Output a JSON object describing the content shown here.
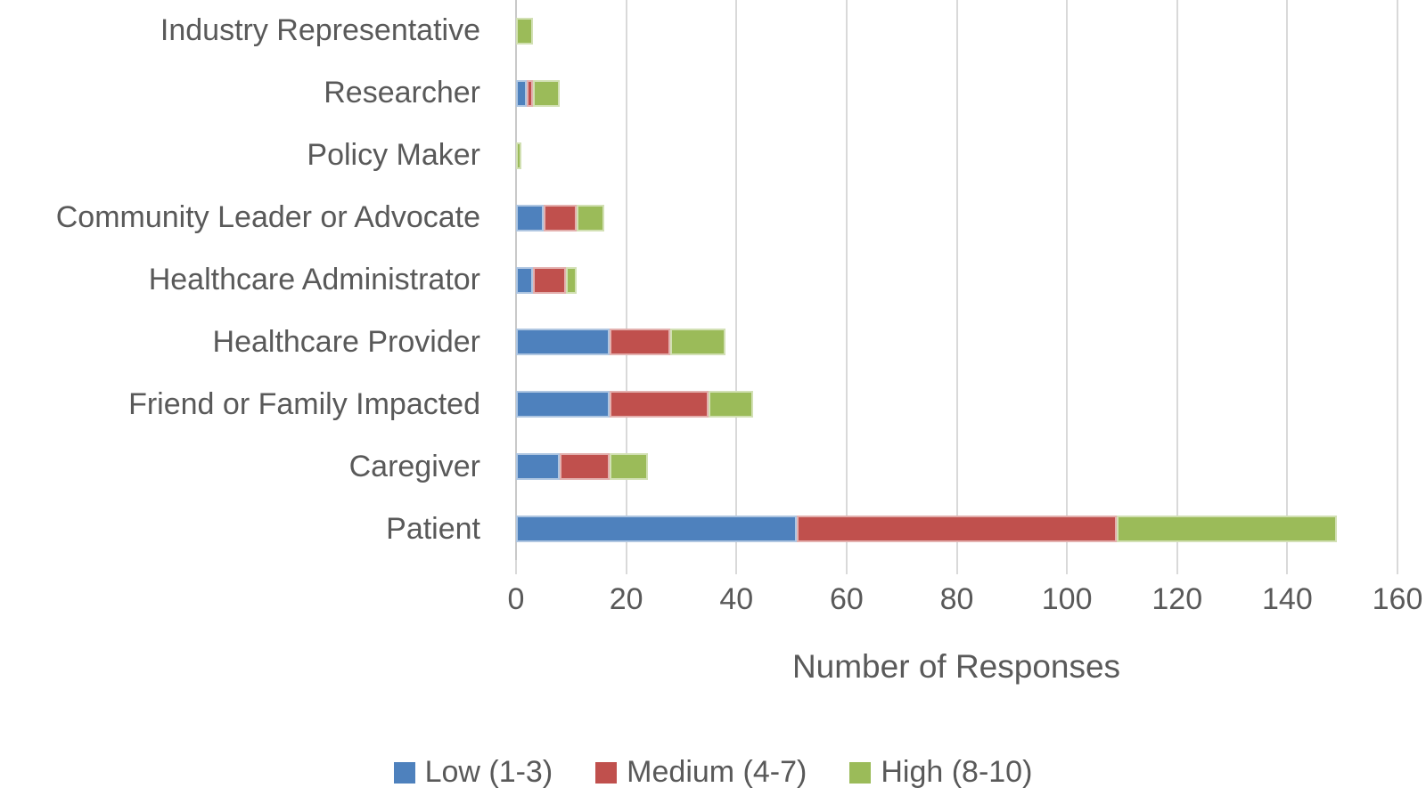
{
  "chart_data": {
    "type": "bar",
    "orientation": "horizontal",
    "stacked": true,
    "title": "",
    "xlabel": "Number of Responses",
    "ylabel": "",
    "xlim": [
      0,
      160
    ],
    "xticks": [
      0,
      20,
      40,
      60,
      80,
      100,
      120,
      140,
      160
    ],
    "grid": "vertical",
    "legend_position": "bottom",
    "categories": [
      "Industry Representative",
      "Researcher",
      "Policy Maker",
      "Community Leader or Advocate",
      "Healthcare Administrator",
      "Healthcare Provider",
      "Friend or Family Impacted",
      "Caregiver",
      "Patient"
    ],
    "series": [
      {
        "name": "Low (1-3)",
        "color": "#4E81BD",
        "values": [
          0,
          2,
          0,
          5,
          3,
          17,
          17,
          8,
          51
        ]
      },
      {
        "name": "Medium (4-7)",
        "color": "#C0504D",
        "values": [
          0,
          1,
          0,
          6,
          6,
          11,
          18,
          9,
          58
        ]
      },
      {
        "name": "High (8-10)",
        "color": "#9BBB59",
        "values": [
          3,
          5,
          1,
          5,
          2,
          10,
          8,
          7,
          40
        ]
      }
    ],
    "colors": {
      "gridline": "#D9D9D9",
      "axis_line": "#C9C9C9",
      "text": "#595959"
    }
  }
}
